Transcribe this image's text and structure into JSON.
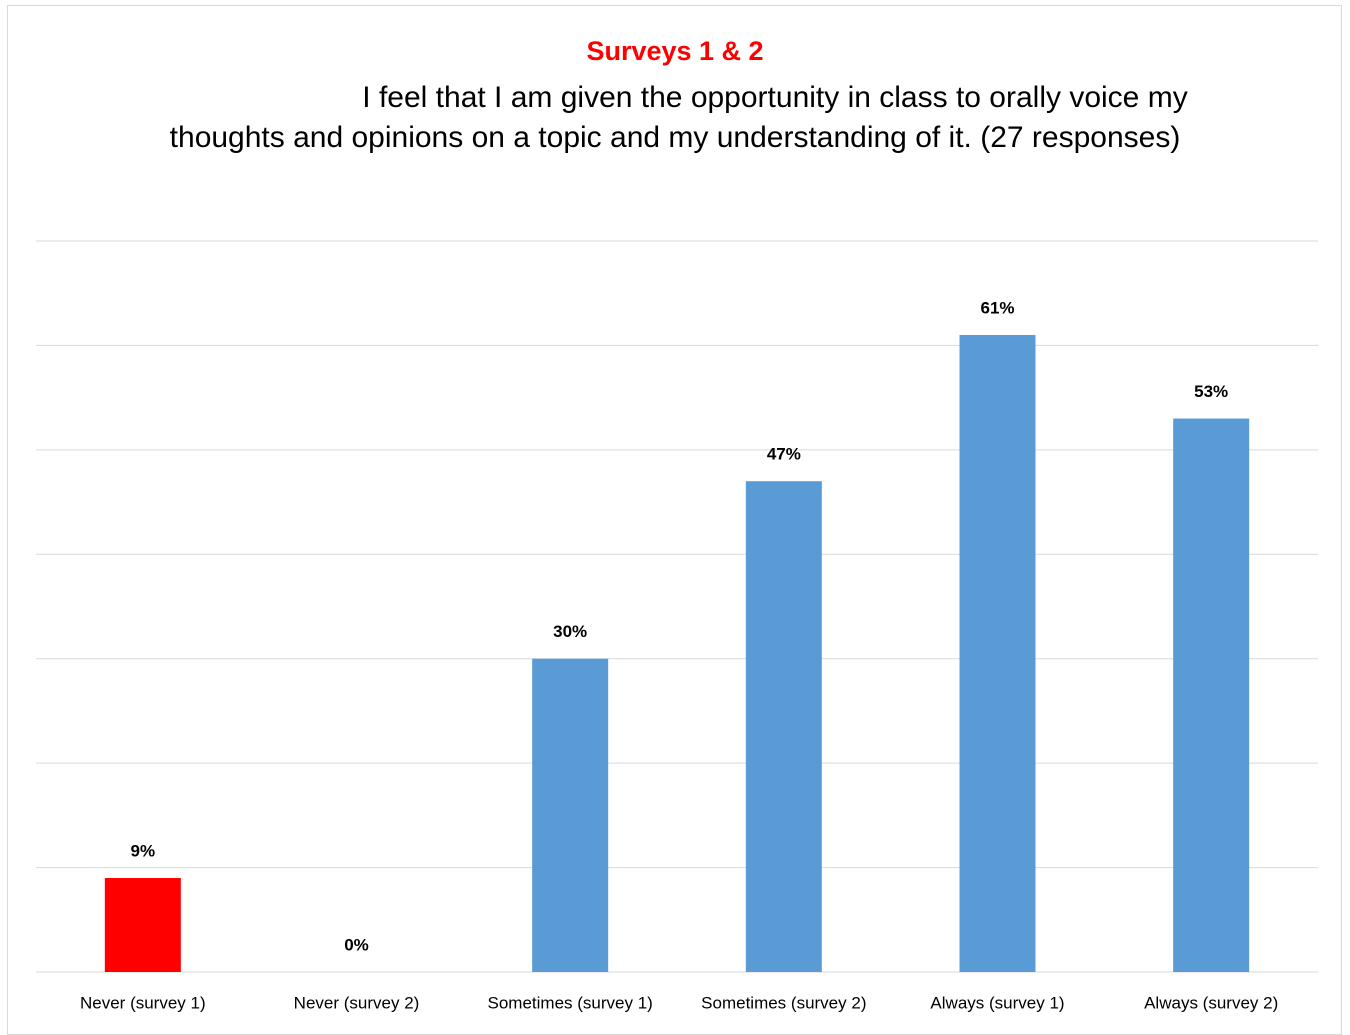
{
  "chart_data": {
    "type": "bar",
    "title": "Surveys 1 & 2",
    "subtitle": "I feel that I am given the opportunity in class to orally voice my thoughts and opinions on a topic and my understanding of it.  (27 responses)",
    "categories": [
      "Never (survey 1)",
      "Never (survey 2)",
      "Sometimes (survey 1)",
      "Sometimes (survey 2)",
      "Always (survey 1)",
      "Always (survey 2)"
    ],
    "values": [
      9,
      0,
      30,
      47,
      61,
      53
    ],
    "value_labels": [
      "9%",
      "0%",
      "30%",
      "47%",
      "61%",
      "53%"
    ],
    "colors": [
      "#ff0000",
      "#5b9bd5",
      "#5b9bd5",
      "#5b9bd5",
      "#5b9bd5",
      "#5b9bd5"
    ],
    "ylim": [
      0,
      70
    ],
    "yticks": [
      0,
      10,
      20,
      30,
      40,
      50,
      60,
      70
    ],
    "grid": true
  }
}
